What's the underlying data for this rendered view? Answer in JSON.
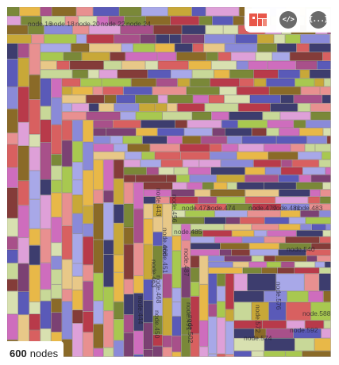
{
  "toolbar": {
    "buttons": [
      {
        "name": "treemap-view-button",
        "icon": "treemap-icon",
        "label": ""
      },
      {
        "name": "code-view-button",
        "icon": "code-icon",
        "label": "</>"
      },
      {
        "name": "json-view-button",
        "icon": "braces-icon",
        "label": "{...}"
      }
    ]
  },
  "footer": {
    "count": "600",
    "count_label": "nodes"
  },
  "colors": {
    "accent": "#e8574a",
    "palette": [
      "#3d3d6e",
      "#5a5ab8",
      "#8a8ad8",
      "#a8a8e8",
      "#7a8838",
      "#a8c850",
      "#c8d898",
      "#d8e0b0",
      "#8a6a28",
      "#c8a838",
      "#e8b848",
      "#e8c888",
      "#843c39",
      "#b83a4a",
      "#d86060",
      "#e89090",
      "#7b4173",
      "#a8508a",
      "#ce6dbd",
      "#dea0d8"
    ],
    "background": "#ffffff"
  },
  "chart_data": {
    "type": "treemap",
    "total_nodes": 600,
    "node_labels": [
      "node.16",
      "node.18",
      "node.20",
      "node.22",
      "node.24",
      "node.443",
      "node.444",
      "node.450",
      "node.451",
      "node.456",
      "node.463",
      "node.466",
      "node.468",
      "node.473",
      "node.474",
      "node.477",
      "node.481",
      "node.483",
      "node.485",
      "node.487",
      "node.491",
      "node.502",
      "node.540",
      "node.572",
      "node.574",
      "node.576",
      "node.588",
      "node.592"
    ]
  }
}
